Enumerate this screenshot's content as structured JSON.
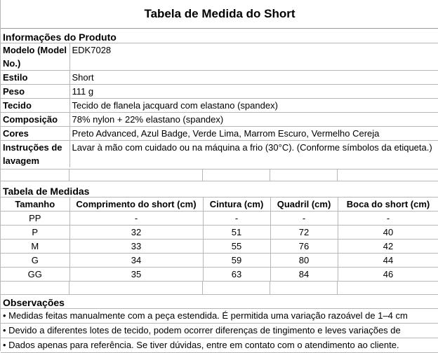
{
  "title": "Tabela de Medida do Short",
  "product_info": {
    "heading": "Informações do Produto",
    "rows": [
      {
        "label": "Modelo (Model No.)",
        "value": "EDK7028"
      },
      {
        "label": "Estilo",
        "value": "Short"
      },
      {
        "label": "Peso",
        "value": "111 g"
      },
      {
        "label": "Tecido",
        "value": "Tecido de flanela jacquard com elastano (spandex)"
      },
      {
        "label": "Composição",
        "value": "78% nylon + 22% elastano (spandex)"
      },
      {
        "label": "Cores",
        "value": "Preto Advanced, Azul Badge, Verde Lima, Marrom Escuro, Vermelho Cereja"
      },
      {
        "label": "Instruções de lavagem",
        "value": "Lavar à mão com cuidado ou na máquina a frio (30°C). (Conforme símbolos da etiqueta.)"
      }
    ]
  },
  "measurements": {
    "heading": "Tabela de Medidas",
    "columns": [
      "Tamanho",
      "Comprimento do short (cm)",
      "Cintura (cm)",
      "Quadril (cm)",
      "Boca do short (cm)"
    ],
    "rows": [
      [
        "PP",
        "-",
        "-",
        "-",
        "-"
      ],
      [
        "P",
        "32",
        "51",
        "72",
        "40"
      ],
      [
        "M",
        "33",
        "55",
        "76",
        "42"
      ],
      [
        "G",
        "34",
        "59",
        "80",
        "44"
      ],
      [
        "GG",
        "35",
        "63",
        "84",
        "46"
      ]
    ]
  },
  "notes": {
    "heading": "Observações",
    "items": [
      "• Medidas feitas manualmente com a peça estendida. É permitida uma variação razoável de 1–4 cm",
      "• Devido a diferentes lotes de tecido, podem ocorrer diferenças de tingimento e leves variações de",
      "• Dados apenas para referência. Se tiver dúvidas, entre em contato com o atendimento ao cliente."
    ]
  }
}
